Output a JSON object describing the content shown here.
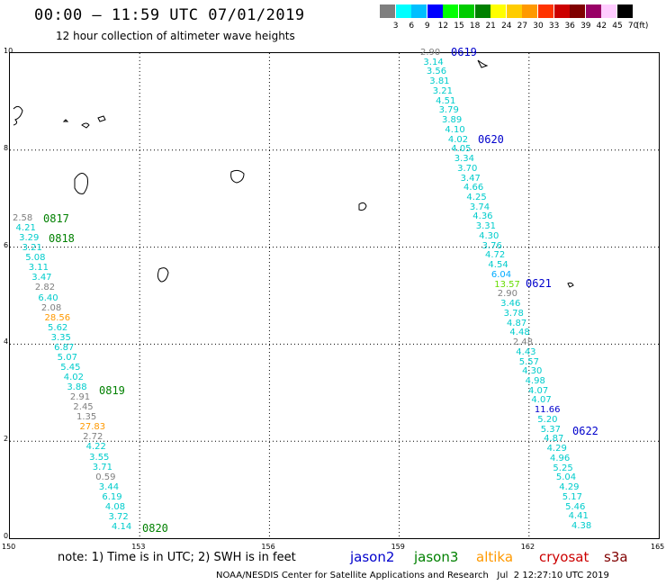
{
  "header": {
    "title": "00:00 — 11:59 UTC 07/01/2019",
    "subtitle": "12 hour collection of altimeter wave heights"
  },
  "colorbar": {
    "colors": [
      "#7f7f7f",
      "#00ffff",
      "#00bfff",
      "#0000ff",
      "#00ff00",
      "#00cc00",
      "#008000",
      "#ffff00",
      "#ffcc00",
      "#ff9900",
      "#ff3300",
      "#cc0000",
      "#800000",
      "#990066",
      "#ffccff",
      "#000000"
    ],
    "labels": [
      "3",
      "6",
      "9",
      "12",
      "15",
      "18",
      "21",
      "24",
      "27",
      "30",
      "33",
      "36",
      "39",
      "42",
      "45",
      "70"
    ],
    "unit": "(ft)"
  },
  "map": {
    "lon_range": [
      150,
      165
    ],
    "lat_range": [
      0,
      10
    ],
    "lon_ticks": [
      "150",
      "153",
      "156",
      "159",
      "162",
      "165"
    ],
    "lat_ticks": [
      "0",
      "2",
      "4",
      "6",
      "8",
      "10"
    ]
  },
  "tracks": {
    "west_values": [
      {
        "v": "2.58",
        "c": "#7f7f7f"
      },
      {
        "v": "4.21",
        "c": "#00cccc"
      },
      {
        "v": "3.29",
        "c": "#00cccc"
      },
      {
        "v": "3.21",
        "c": "#00cccc"
      },
      {
        "v": "5.08",
        "c": "#00cccc"
      },
      {
        "v": "3.11",
        "c": "#00cccc"
      },
      {
        "v": "3.47",
        "c": "#00cccc"
      },
      {
        "v": "2.82",
        "c": "#7f7f7f"
      },
      {
        "v": "6.40",
        "c": "#00cccc"
      },
      {
        "v": "2.08",
        "c": "#7f7f7f"
      },
      {
        "v": "28.56",
        "c": "#ff9900"
      },
      {
        "v": "5.62",
        "c": "#00cccc"
      },
      {
        "v": "3.35",
        "c": "#00cccc"
      },
      {
        "v": "6.87",
        "c": "#00cccc"
      },
      {
        "v": "5.07",
        "c": "#00cccc"
      },
      {
        "v": "5.45",
        "c": "#00cccc"
      },
      {
        "v": "4.02",
        "c": "#00cccc"
      },
      {
        "v": "3.88",
        "c": "#00cccc"
      },
      {
        "v": "2.91",
        "c": "#7f7f7f"
      },
      {
        "v": "2.45",
        "c": "#7f7f7f"
      },
      {
        "v": "1.35",
        "c": "#7f7f7f"
      },
      {
        "v": "27.83",
        "c": "#ff9900"
      },
      {
        "v": "2.72",
        "c": "#7f7f7f"
      },
      {
        "v": "4.22",
        "c": "#00cccc"
      },
      {
        "v": "3.55",
        "c": "#00cccc"
      },
      {
        "v": "3.71",
        "c": "#00cccc"
      },
      {
        "v": "0.59",
        "c": "#7f7f7f"
      },
      {
        "v": "3.44",
        "c": "#00cccc"
      },
      {
        "v": "6.19",
        "c": "#00cccc"
      },
      {
        "v": "4.08",
        "c": "#00cccc"
      },
      {
        "v": "3.72",
        "c": "#00cccc"
      },
      {
        "v": "4.14",
        "c": "#00cccc"
      }
    ],
    "east_values": [
      {
        "v": "2.90",
        "c": "#7f7f7f"
      },
      {
        "v": "3.14",
        "c": "#00cccc"
      },
      {
        "v": "3.56",
        "c": "#00cccc"
      },
      {
        "v": "3.81",
        "c": "#00cccc"
      },
      {
        "v": "3.21",
        "c": "#00cccc"
      },
      {
        "v": "4.51",
        "c": "#00cccc"
      },
      {
        "v": "3.79",
        "c": "#00cccc"
      },
      {
        "v": "3.89",
        "c": "#00cccc"
      },
      {
        "v": "4.10",
        "c": "#00cccc"
      },
      {
        "v": "4.02",
        "c": "#00cccc"
      },
      {
        "v": "4.05",
        "c": "#00cccc"
      },
      {
        "v": "3.34",
        "c": "#00cccc"
      },
      {
        "v": "3.70",
        "c": "#00cccc"
      },
      {
        "v": "3.47",
        "c": "#00cccc"
      },
      {
        "v": "4.66",
        "c": "#00cccc"
      },
      {
        "v": "4.25",
        "c": "#00cccc"
      },
      {
        "v": "3.74",
        "c": "#00cccc"
      },
      {
        "v": "4.36",
        "c": "#00cccc"
      },
      {
        "v": "3.31",
        "c": "#00cccc"
      },
      {
        "v": "4.30",
        "c": "#00cccc"
      },
      {
        "v": "3.76",
        "c": "#00cccc"
      },
      {
        "v": "4.72",
        "c": "#00cccc"
      },
      {
        "v": "4.54",
        "c": "#00cccc"
      },
      {
        "v": "6.04",
        "c": "#00aaff"
      },
      {
        "v": "13.57",
        "c": "#66dd00"
      },
      {
        "v": "2.90",
        "c": "#7f7f7f"
      },
      {
        "v": "3.46",
        "c": "#00cccc"
      },
      {
        "v": "3.78",
        "c": "#00cccc"
      },
      {
        "v": "4.87",
        "c": "#00cccc"
      },
      {
        "v": "4.48",
        "c": "#00cccc"
      },
      {
        "v": "2.48",
        "c": "#7f7f7f"
      },
      {
        "v": "4.43",
        "c": "#00cccc"
      },
      {
        "v": "5.57",
        "c": "#00cccc"
      },
      {
        "v": "4.30",
        "c": "#00cccc"
      },
      {
        "v": "4.98",
        "c": "#00cccc"
      },
      {
        "v": "4.07",
        "c": "#00cccc"
      },
      {
        "v": "4.07",
        "c": "#00cccc"
      },
      {
        "v": "11.66",
        "c": "#0000cc"
      },
      {
        "v": "5.20",
        "c": "#00cccc"
      },
      {
        "v": "5.37",
        "c": "#00cccc"
      },
      {
        "v": "4.87",
        "c": "#00cccc"
      },
      {
        "v": "4.29",
        "c": "#00cccc"
      },
      {
        "v": "4.96",
        "c": "#00cccc"
      },
      {
        "v": "5.25",
        "c": "#00cccc"
      },
      {
        "v": "5.04",
        "c": "#00cccc"
      },
      {
        "v": "4.29",
        "c": "#00cccc"
      },
      {
        "v": "5.17",
        "c": "#00cccc"
      },
      {
        "v": "5.46",
        "c": "#00cccc"
      },
      {
        "v": "4.41",
        "c": "#00cccc"
      },
      {
        "v": "4.38",
        "c": "#00cccc"
      }
    ],
    "time_labels": [
      {
        "t": "0619",
        "c": "#0000cc"
      },
      {
        "t": "0620",
        "c": "#0000cc"
      },
      {
        "t": "0621",
        "c": "#0000cc"
      },
      {
        "t": "0622",
        "c": "#0000cc"
      },
      {
        "t": "0817",
        "c": "#008000"
      },
      {
        "t": "0818",
        "c": "#008000"
      },
      {
        "t": "0819",
        "c": "#008000"
      },
      {
        "t": "0820",
        "c": "#008000"
      }
    ]
  },
  "footer": {
    "note": "note: 1) Time is in UTC; 2) SWH is in feet",
    "satellites": [
      {
        "name": "jason2",
        "color": "#0000cc"
      },
      {
        "name": "jason3",
        "color": "#008000"
      },
      {
        "name": "altika",
        "color": "#ff9900"
      },
      {
        "name": "cryosat",
        "color": "#cc0000"
      },
      {
        "name": "s3a",
        "color": "#800000"
      }
    ],
    "credit": "NOAA/NESDIS Center for Satellite Applications and Research   Jul  2 12:27:10 UTC 2019"
  }
}
